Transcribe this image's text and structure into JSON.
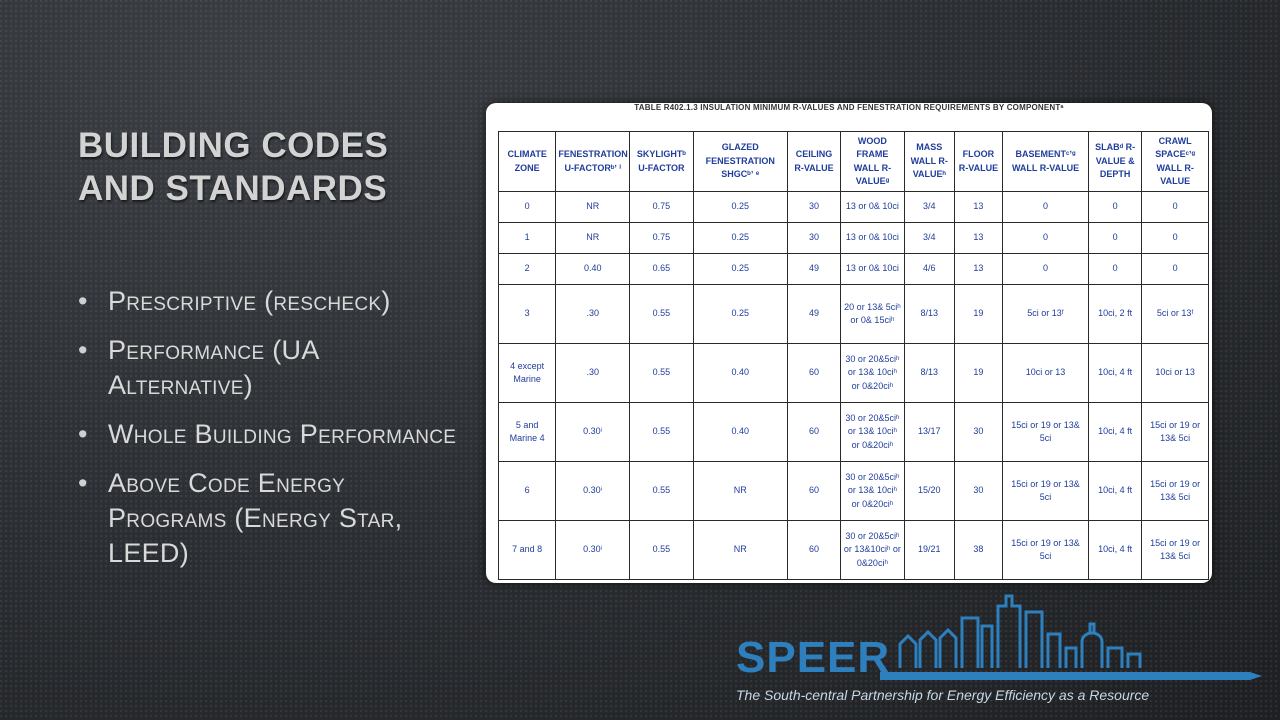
{
  "slide": {
    "title": "Building Codes and Standards",
    "bullets": [
      "Prescriptive (rescheck)",
      "Performance (UA Alternative)",
      "Whole Building Performance",
      "Above Code Energy Programs (Energy Star, LEED)"
    ]
  },
  "table": {
    "caption": "TABLE R402.1.3 INSULATION MINIMUM R-VALUES AND FENESTRATION REQUIREMENTS BY COMPONENTᵃ",
    "headers": [
      "CLIMATE ZONE",
      "FENESTRATION U-FACTORᵇʼ ⁱ",
      "SKYLIGHTᵇ U-FACTOR",
      "GLAZED FENESTRATION SHGCᵇʼ ᵉ",
      "CEILING R-VALUE",
      "WOOD FRAME WALL R-VALUEᵍ",
      "MASS WALL R-VALUEʰ",
      "FLOOR R-VALUE",
      "BASEMENTᶜʼᵍ WALL R-VALUE",
      "SLABᵈ R-VALUE & DEPTH",
      "CRAWL SPACEᶜʼᵍ WALL R-VALUE"
    ],
    "rows": [
      [
        "0",
        "NR",
        "0.75",
        "0.25",
        "30",
        "13 or 0& 10ci",
        "3/4",
        "13",
        "0",
        "0",
        "0"
      ],
      [
        "1",
        "NR",
        "0.75",
        "0.25",
        "30",
        "13 or 0& 10ci",
        "3/4",
        "13",
        "0",
        "0",
        "0"
      ],
      [
        "2",
        "0.40",
        "0.65",
        "0.25",
        "49",
        "13 or 0& 10ci",
        "4/6",
        "13",
        "0",
        "0",
        "0"
      ],
      [
        "3",
        ".30",
        "0.55",
        "0.25",
        "49",
        "20 or 13& 5ciʰ or 0& 15ciʰ",
        "8/13",
        "19",
        "5ci or 13ᶠ",
        "10ci, 2 ft",
        "5ci or 13ᶠ"
      ],
      [
        "4 except Marine",
        ".30",
        "0.55",
        "0.40",
        "60",
        "30 or 20&5ciʰ or 13& 10ciʰ or 0&20ciʰ",
        "8/13",
        "19",
        "10ci or 13",
        "10ci, 4 ft",
        "10ci or 13"
      ],
      [
        "5 and Marine 4",
        "0.30ⁱ",
        "0.55",
        "0.40",
        "60",
        "30 or 20&5ciʰ or 13& 10ciʰ or 0&20ciʰ",
        "13/17",
        "30",
        "15ci or 19 or 13& 5ci",
        "10ci, 4 ft",
        "15ci or 19 or 13& 5ci"
      ],
      [
        "6",
        "0.30ⁱ",
        "0.55",
        "NR",
        "60",
        "30 or 20&5ciʰ or 13& 10ciʰ or 0&20ciʰ",
        "15/20",
        "30",
        "15ci or 19 or 13& 5ci",
        "10ci, 4 ft",
        "15ci or 19 or 13& 5ci"
      ],
      [
        "7 and 8",
        "0.30ⁱ",
        "0.55",
        "NR",
        "60",
        "30 or 20&5ciʰ or 13&10ciʰ or 0&20ciʰ",
        "19/21",
        "38",
        "15ci or 19 or 13& 5ci",
        "10ci, 4 ft",
        "15ci or 19 or 13& 5ci"
      ]
    ]
  },
  "logo": {
    "name": "SPEER",
    "tagline": "The South-central Partnership for Energy Efficiency as a Resource",
    "color": "#2d7fbd"
  }
}
